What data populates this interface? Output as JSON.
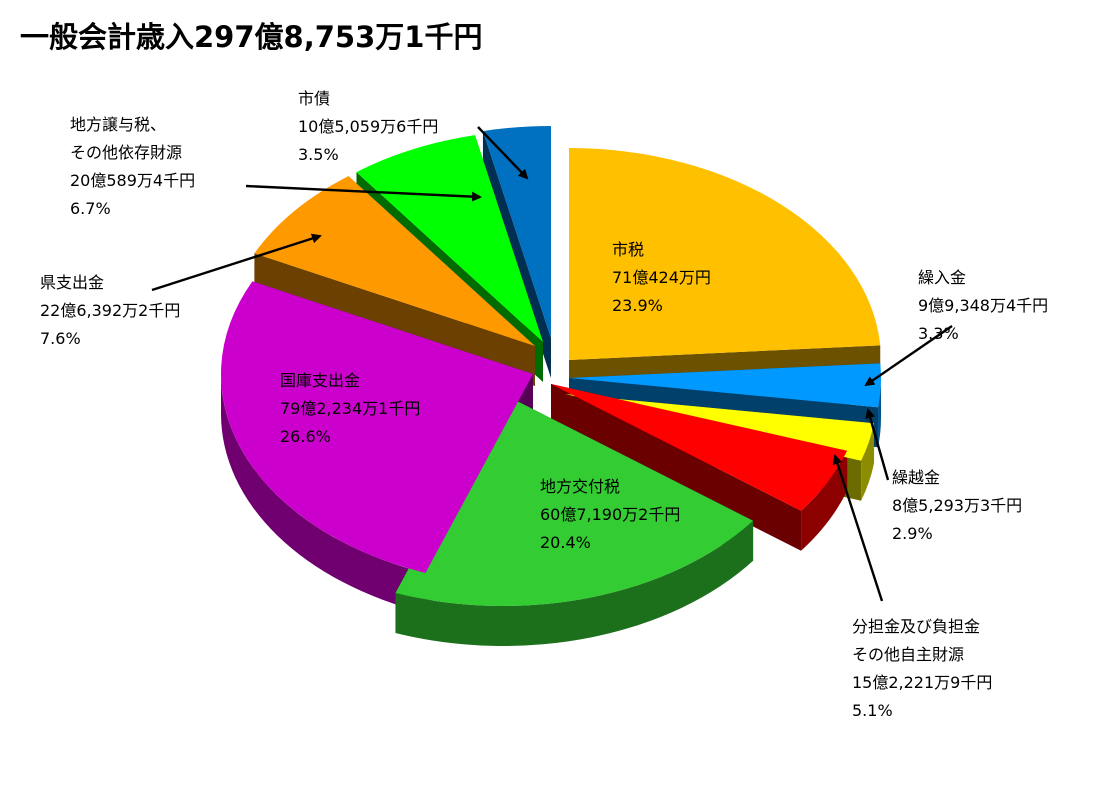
{
  "title": "一般会計歳入297億8,753万1千円",
  "chart_data": {
    "type": "pie",
    "title": "一般会計歳入297億8,753万1千円",
    "three_d": true,
    "exploded": true,
    "slices": [
      {
        "name": "市税",
        "amount": "71億424万円",
        "percent": 23.9,
        "percent_label": "23.9%",
        "color": "#FFC000",
        "label_lines": [
          "市税",
          "71億424万円",
          "23.9%"
        ]
      },
      {
        "name": "繰入金",
        "amount": "9億9,348万4千円",
        "percent": 3.3,
        "percent_label": "3.3%",
        "color": "#0099FF",
        "label_lines": [
          "繰入金",
          "9億9,348万4千円",
          "3.3%"
        ]
      },
      {
        "name": "繰越金",
        "amount": "8億5,293万3千円",
        "percent": 2.9,
        "percent_label": "2.9%",
        "color": "#FFFF00",
        "label_lines": [
          "繰越金",
          "8億5,293万3千円",
          "2.9%"
        ]
      },
      {
        "name": "分担金及び負担金その他自主財源",
        "amount": "15億2,221万9千円",
        "percent": 5.1,
        "percent_label": "5.1%",
        "color": "#FF0000",
        "label_lines": [
          "分担金及び負担金",
          "その他自主財源",
          "15億2,221万9千円",
          "5.1%"
        ]
      },
      {
        "name": "地方交付税",
        "amount": "60億7,190万2千円",
        "percent": 20.4,
        "percent_label": "20.4%",
        "color": "#33CC33",
        "label_lines": [
          "地方交付税",
          "60億7,190万2千円",
          "20.4%"
        ]
      },
      {
        "name": "国庫支出金",
        "amount": "79億2,234万1千円",
        "percent": 26.6,
        "percent_label": "26.6%",
        "color": "#CC00CC",
        "label_lines": [
          "国庫支出金",
          "79億2,234万1千円",
          "26.6%"
        ]
      },
      {
        "name": "県支出金",
        "amount": "22億6,392万2千円",
        "percent": 7.6,
        "percent_label": "7.6%",
        "color": "#FF9900",
        "label_lines": [
          "県支出金",
          "22億6,392万2千円",
          "7.6%"
        ]
      },
      {
        "name": "地方譲与税、その他依存財源",
        "amount": "20億589万4千円",
        "percent": 6.7,
        "percent_label": "6.7%",
        "color": "#00FF00",
        "label_lines": [
          "地方譲与税、",
          "その他依存財源",
          "20億589万4千円",
          "6.7%"
        ]
      },
      {
        "name": "市債",
        "amount": "10億5,059万6千円",
        "percent": 3.5,
        "percent_label": "3.5%",
        "color": "#0070C0",
        "label_lines": [
          "市債",
          "10億5,059万6千円",
          "3.5%"
        ]
      }
    ]
  }
}
